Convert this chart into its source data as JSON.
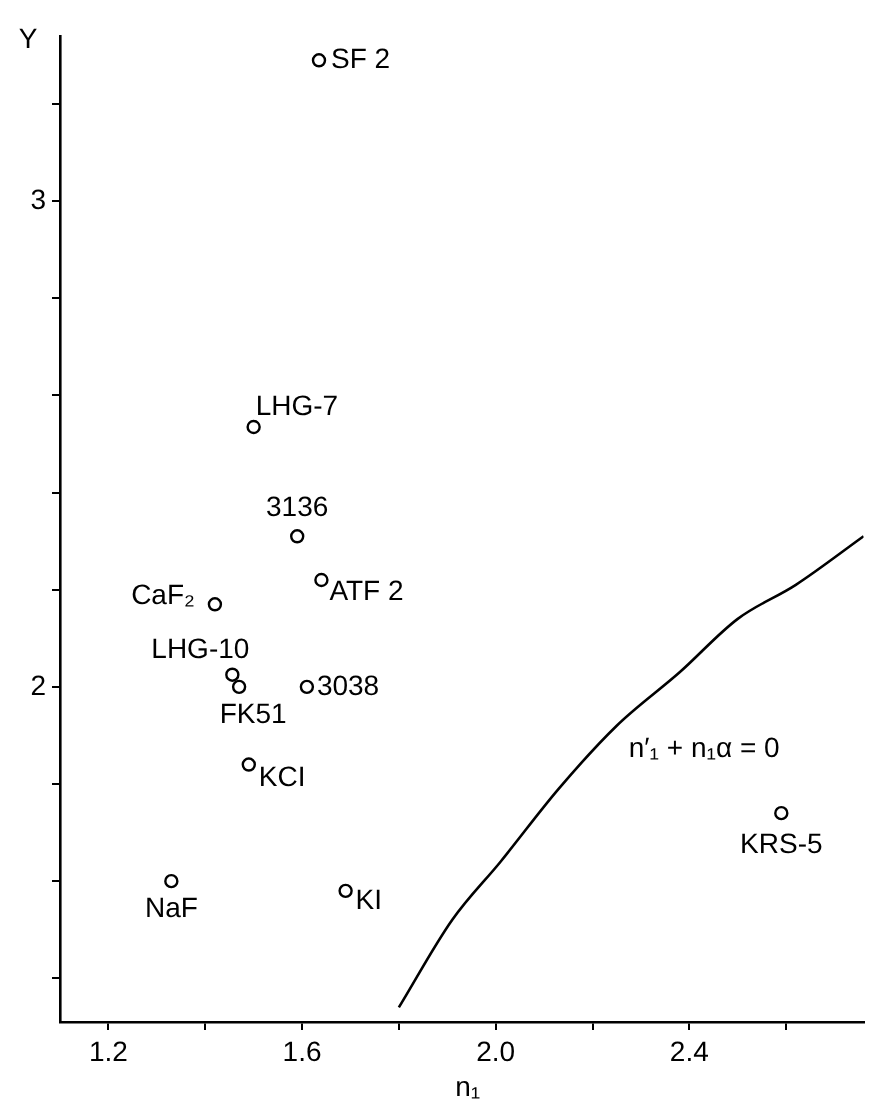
{
  "chart_data": {
    "type": "scatter",
    "xlabel": "n₁",
    "ylabel": "Y",
    "xlim": [
      1.1,
      2.76
    ],
    "ylim": [
      1.31,
      3.34
    ],
    "xticks": [
      {
        "value": 1.2,
        "label": "1.2"
      },
      {
        "value": 1.4,
        "label": null
      },
      {
        "value": 1.6,
        "label": "1.6"
      },
      {
        "value": 1.8,
        "label": null
      },
      {
        "value": 2,
        "label": "2.0"
      },
      {
        "value": 2.2,
        "label": null
      },
      {
        "value": 2.4,
        "label": "2.4"
      },
      {
        "value": 2.6,
        "label": null
      }
    ],
    "yticks": [
      {
        "value": 1.4,
        "label": null
      },
      {
        "value": 1.6,
        "label": null
      },
      {
        "value": 1.8,
        "label": null
      },
      2,
      {
        "value": 2.2,
        "label": null
      },
      {
        "value": 2.4,
        "label": null
      },
      {
        "value": 2.6,
        "label": null
      },
      {
        "value": 2.8,
        "label": null
      },
      3,
      {
        "value": 3.2,
        "label": null
      }
    ],
    "grid": false,
    "legend": false,
    "series": [
      {
        "color": "#000000",
        "marker": "circle",
        "x": [
          1.635,
          1.5,
          1.59,
          1.42,
          1.64,
          1.456,
          1.47,
          1.61,
          1.49,
          1.33,
          1.69,
          2.59
        ],
        "values": [
          3.29,
          2.535,
          2.31,
          2.17,
          2.22,
          2.025,
          2.0,
          2.0,
          1.84,
          1.6,
          1.58,
          1.74
        ]
      },
      {
        "type": "line",
        "name": "n′₁ + n₁α = 0",
        "color": "#000000",
        "marker": "none",
        "line_style": "solid",
        "x": [
          1.8,
          1.91,
          2.01,
          2.13,
          2.25,
          2.38,
          2.5,
          2.62,
          2.76
        ],
        "values": [
          1.34,
          1.52,
          1.64,
          1.79,
          1.92,
          2.03,
          2.14,
          2.21,
          2.31
        ]
      }
    ],
    "annotations": [
      {
        "text": "SF 2",
        "x": 1.635,
        "y": 3.29
      },
      {
        "text": "LHG-7",
        "x": 1.5,
        "y": 2.535
      },
      {
        "text": "3136",
        "x": 1.59,
        "y": 2.31
      },
      {
        "text": "CaF₂",
        "x": 1.42,
        "y": 2.17
      },
      {
        "text": "ATF 2",
        "x": 1.64,
        "y": 2.22
      },
      {
        "text": "LHG-10",
        "x": 1.456,
        "y": 2.025
      },
      {
        "text": "FK51",
        "x": 1.47,
        "y": 2.0
      },
      {
        "text": "3038",
        "x": 1.61,
        "y": 2.0
      },
      {
        "text": "KCI",
        "x": 1.49,
        "y": 1.84
      },
      {
        "text": "NaF",
        "x": 1.33,
        "y": 1.6
      },
      {
        "text": "KI",
        "x": 1.69,
        "y": 1.58
      },
      {
        "text": "KRS-5",
        "x": 2.59,
        "y": 1.74
      }
    ]
  }
}
